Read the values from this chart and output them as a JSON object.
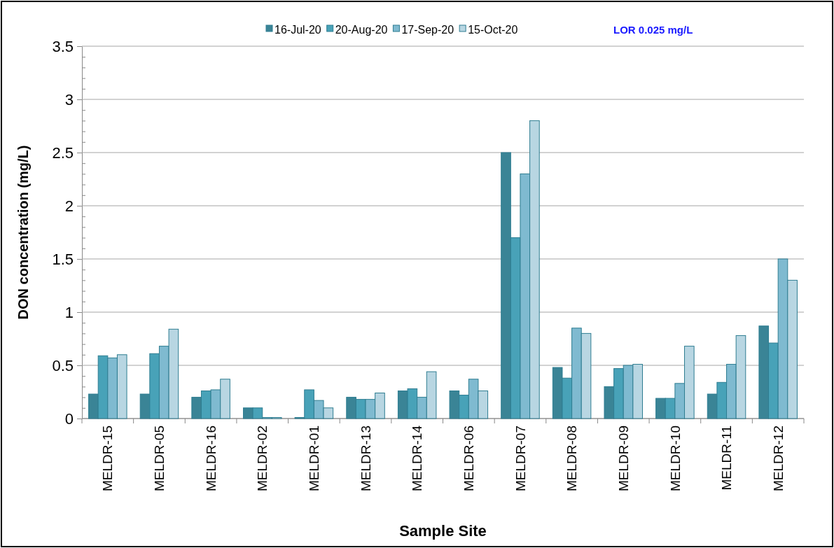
{
  "chart_data": {
    "type": "bar",
    "xlabel": "Sample Site",
    "ylabel": "DON concentration (mg/L)",
    "annotations": [
      "LOR 0.025 mg/L"
    ],
    "categories": [
      "MELDR-15",
      "MELDR-05",
      "MELDR-16",
      "MELDR-02",
      "MELDR-01",
      "MELDR-13",
      "MELDR-14",
      "MELDR-06",
      "MELDR-07",
      "MELDR-08",
      "MELDR-09",
      "MELDR-10",
      "MELDR-11",
      "MELDR-12"
    ],
    "series": [
      {
        "name": "16-Jul-20",
        "color": "#3a8496",
        "values": [
          0.23,
          0.23,
          0.2,
          0.1,
          0.01,
          0.2,
          0.26,
          0.26,
          2.5,
          0.48,
          0.3,
          0.19,
          0.23,
          0.87
        ]
      },
      {
        "name": "20-Aug-20",
        "color": "#48a2b8",
        "values": [
          0.59,
          0.61,
          0.26,
          0.1,
          0.27,
          0.18,
          0.28,
          0.22,
          1.7,
          0.38,
          0.47,
          0.19,
          0.34,
          0.71
        ]
      },
      {
        "name": "17-Sep-20",
        "color": "#7fbad0",
        "values": [
          0.57,
          0.68,
          0.27,
          0.01,
          0.17,
          0.18,
          0.2,
          0.37,
          2.3,
          0.85,
          0.5,
          0.33,
          0.51,
          1.5
        ]
      },
      {
        "name": "15-Oct-20",
        "color": "#b8d6e2",
        "values": [
          0.6,
          0.84,
          0.37,
          0.01,
          0.1,
          0.24,
          0.44,
          0.26,
          2.8,
          0.8,
          0.51,
          0.68,
          0.78,
          1.3
        ]
      }
    ],
    "ylim": [
      0,
      3.5
    ],
    "yticks": [
      0,
      {
        "value": 0.1,
        "label": null
      },
      {
        "value": 0.2,
        "label": null
      },
      {
        "value": 0.3,
        "label": null
      },
      {
        "value": 0.4,
        "label": null
      },
      0.5,
      {
        "value": 0.6,
        "label": null
      },
      {
        "value": 0.7,
        "label": null
      },
      {
        "value": 0.8,
        "label": null
      },
      {
        "value": 0.9,
        "label": null
      },
      1,
      {
        "value": 1.1,
        "label": null
      },
      {
        "value": 1.2,
        "label": null
      },
      {
        "value": 1.3,
        "label": null
      },
      {
        "value": 1.4,
        "label": null
      },
      1.5,
      {
        "value": 1.6,
        "label": null
      },
      {
        "value": 1.7,
        "label": null
      },
      {
        "value": 1.8,
        "label": null
      },
      {
        "value": 1.9,
        "label": null
      },
      2,
      {
        "value": 2.1,
        "label": null
      },
      {
        "value": 2.2,
        "label": null
      },
      {
        "value": 2.3,
        "label": null
      },
      {
        "value": 2.4,
        "label": null
      },
      2.5,
      {
        "value": 2.6,
        "label": null
      },
      {
        "value": 2.7,
        "label": null
      },
      {
        "value": 2.8,
        "label": null
      },
      {
        "value": 2.9,
        "label": null
      },
      3,
      {
        "value": 3.1,
        "label": null
      },
      {
        "value": 3.2,
        "label": null
      },
      {
        "value": 3.3,
        "label": null
      },
      {
        "value": 3.4,
        "label": null
      },
      3.5
    ],
    "grid": "y",
    "legend": "top"
  }
}
